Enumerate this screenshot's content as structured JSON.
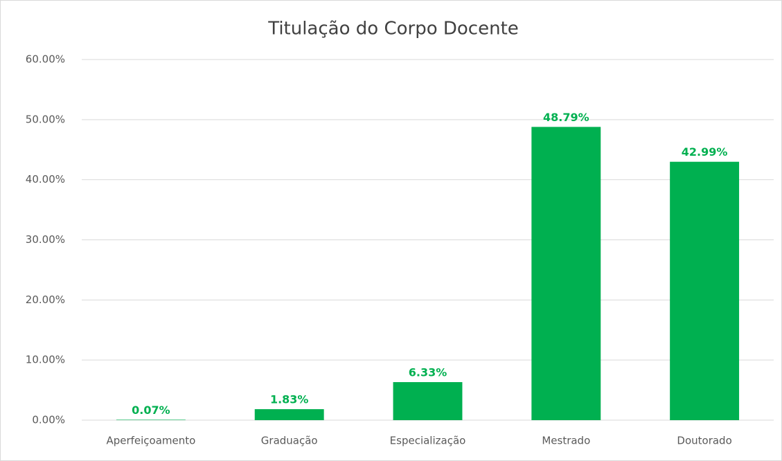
{
  "chart_data": {
    "type": "bar",
    "title": "Titulação do Corpo Docente",
    "categories": [
      "Aperfeiçoamento",
      "Graduação",
      "Especialização",
      "Mestrado",
      "Doutorado"
    ],
    "values": [
      0.07,
      1.83,
      6.33,
      48.79,
      42.99
    ],
    "value_labels": [
      "0.07%",
      "1.83%",
      "6.33%",
      "48.79%",
      "42.99%"
    ],
    "color": "#00b050",
    "ylim": [
      0,
      60
    ],
    "yticks": [
      {
        "value": 0,
        "label": "0.00%"
      },
      {
        "value": 10,
        "label": "10.00%"
      },
      {
        "value": 20,
        "label": "20.00%"
      },
      {
        "value": 30,
        "label": "30.00%"
      },
      {
        "value": 40,
        "label": "40.00%"
      },
      {
        "value": 50,
        "label": "50.00%"
      },
      {
        "value": 60,
        "label": "60.00%"
      }
    ],
    "grid": true
  }
}
